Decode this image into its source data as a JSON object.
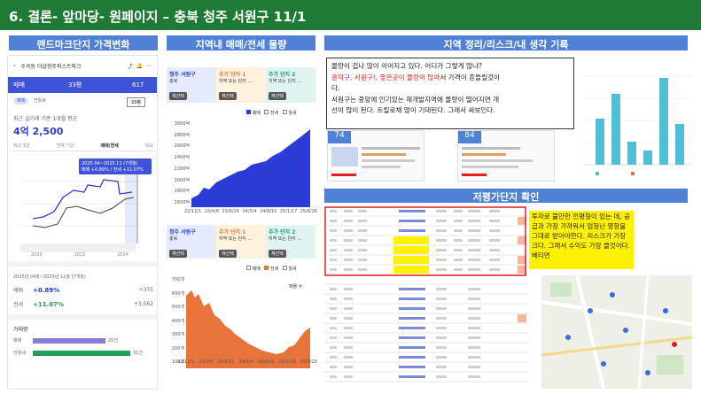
{
  "header": {
    "title": "6. 결론- 앞마당- 원페이지 – 충북 청주 서원구 11/1"
  },
  "sections": {
    "landmark": "랜드마크단지 가격변화",
    "volume": "지역내 매매/전세 물량",
    "summary": "지역 정리/리스크/내 생각 기록",
    "cheap": "저평가단지 확인"
  },
  "app": {
    "location": "수곡동 더샵청주퍼스트파크",
    "type": "매매",
    "size": "33평",
    "count": "617",
    "tabs": [
      "매매",
      "전월세"
    ],
    "tab_selected": "33평",
    "recent_label": "최근 실거래 기준 1개월 평균",
    "price": "4억 2,500",
    "periods": [
      "최근 3년",
      "전체 기간",
      "매매/전세",
      "비교"
    ],
    "tooltip": {
      "date": "2025.04~2025.11 (7개월)",
      "text": "매매 +0.89% / 전세 +11.07%"
    },
    "years": [
      "2020",
      "2022",
      "2024"
    ],
    "range_label": "2025년 04월~2025년 11월 (7개월)",
    "stats": [
      {
        "label": "매매",
        "pct": "+0.89%",
        "amt": "+375"
      },
      {
        "label": "전세",
        "pct": "+11.07%",
        "amt": "+3,562"
      }
    ],
    "vol_title": "거래량",
    "vol_bars": [
      {
        "label": "매매",
        "value": "20건"
      },
      {
        "label": "전월세",
        "value": "31건"
      }
    ]
  },
  "vol_top": {
    "cards": [
      {
        "t": "청주 서원구",
        "s": "충북",
        "b": "재선택"
      },
      {
        "t": "추가 단지 1",
        "s": "지역 또는 단지 ...",
        "b": "재선택"
      },
      {
        "t": "추가 단지 2",
        "s": "지역 또는 단지 ...",
        "b": "재선택"
      }
    ],
    "legend": [
      "매매",
      "전세",
      "월세"
    ],
    "yticks": [
      "3000억",
      "2800억",
      "2600억",
      "2400억",
      "2200억",
      "2000억",
      "1800억",
      "1600억"
    ],
    "xticks": [
      "22/11/1",
      "23/4/8",
      "23/9/24",
      "24/3/4",
      "24/8/10",
      "25/1/17",
      "25/6/26"
    ]
  },
  "vol_bottom": {
    "cards": [
      {
        "t": "청주 서원구",
        "s": "충북",
        "b": "재선택"
      },
      {
        "t": "추가 단지 1",
        "s": "지역 또는 단지 ...",
        "b": "재선택"
      },
      {
        "t": "추가 단지 2",
        "s": "지역 또는 단지 ...",
        "b": "재선택"
      }
    ],
    "legend": [
      "매매",
      "전세",
      "월세"
    ],
    "side": "매물 수",
    "yticks": [
      "700개",
      "600개",
      "500개",
      "400개",
      "300개",
      "200개",
      "100개"
    ],
    "xticks": [
      "22/11/1",
      "23/4/8",
      "23/9/21",
      "24/3/4",
      "24/8/20",
      "25/1/16",
      "25/6/20"
    ]
  },
  "memo": {
    "l1": "물량이 겁나 많이 이어지고 있다. 어디가 그렇게 많냐?",
    "l2a": "흥덕구, 서원구!, 좋은곳이 물량이 많아",
    "l2b": "서 가격이 흔들릴것이",
    "l3": "다.",
    "l4": "서원구는 중앙에 인기있는 재개발지역에 물량이 떨어지면 개",
    "l5": "선이 많이 된다. 트릴로채 많이 기대된다. 그래서 싸보인다."
  },
  "cards": [
    {
      "n": "74"
    },
    {
      "n": "84"
    }
  ],
  "note": "투자로 불안한 낀평형이 있는 데, 공급과 가장 가까워서 엄청난 영향을 그대로 받아야한다. 리스크가 가장크다. 그래서 수익도 가장 클것이다. 베티면",
  "colors": {
    "green": "#1e7a34",
    "blue": "#4f81d6",
    "sale": "#2d3bd6",
    "lease": "#e8743b",
    "red": "#e02020"
  }
}
